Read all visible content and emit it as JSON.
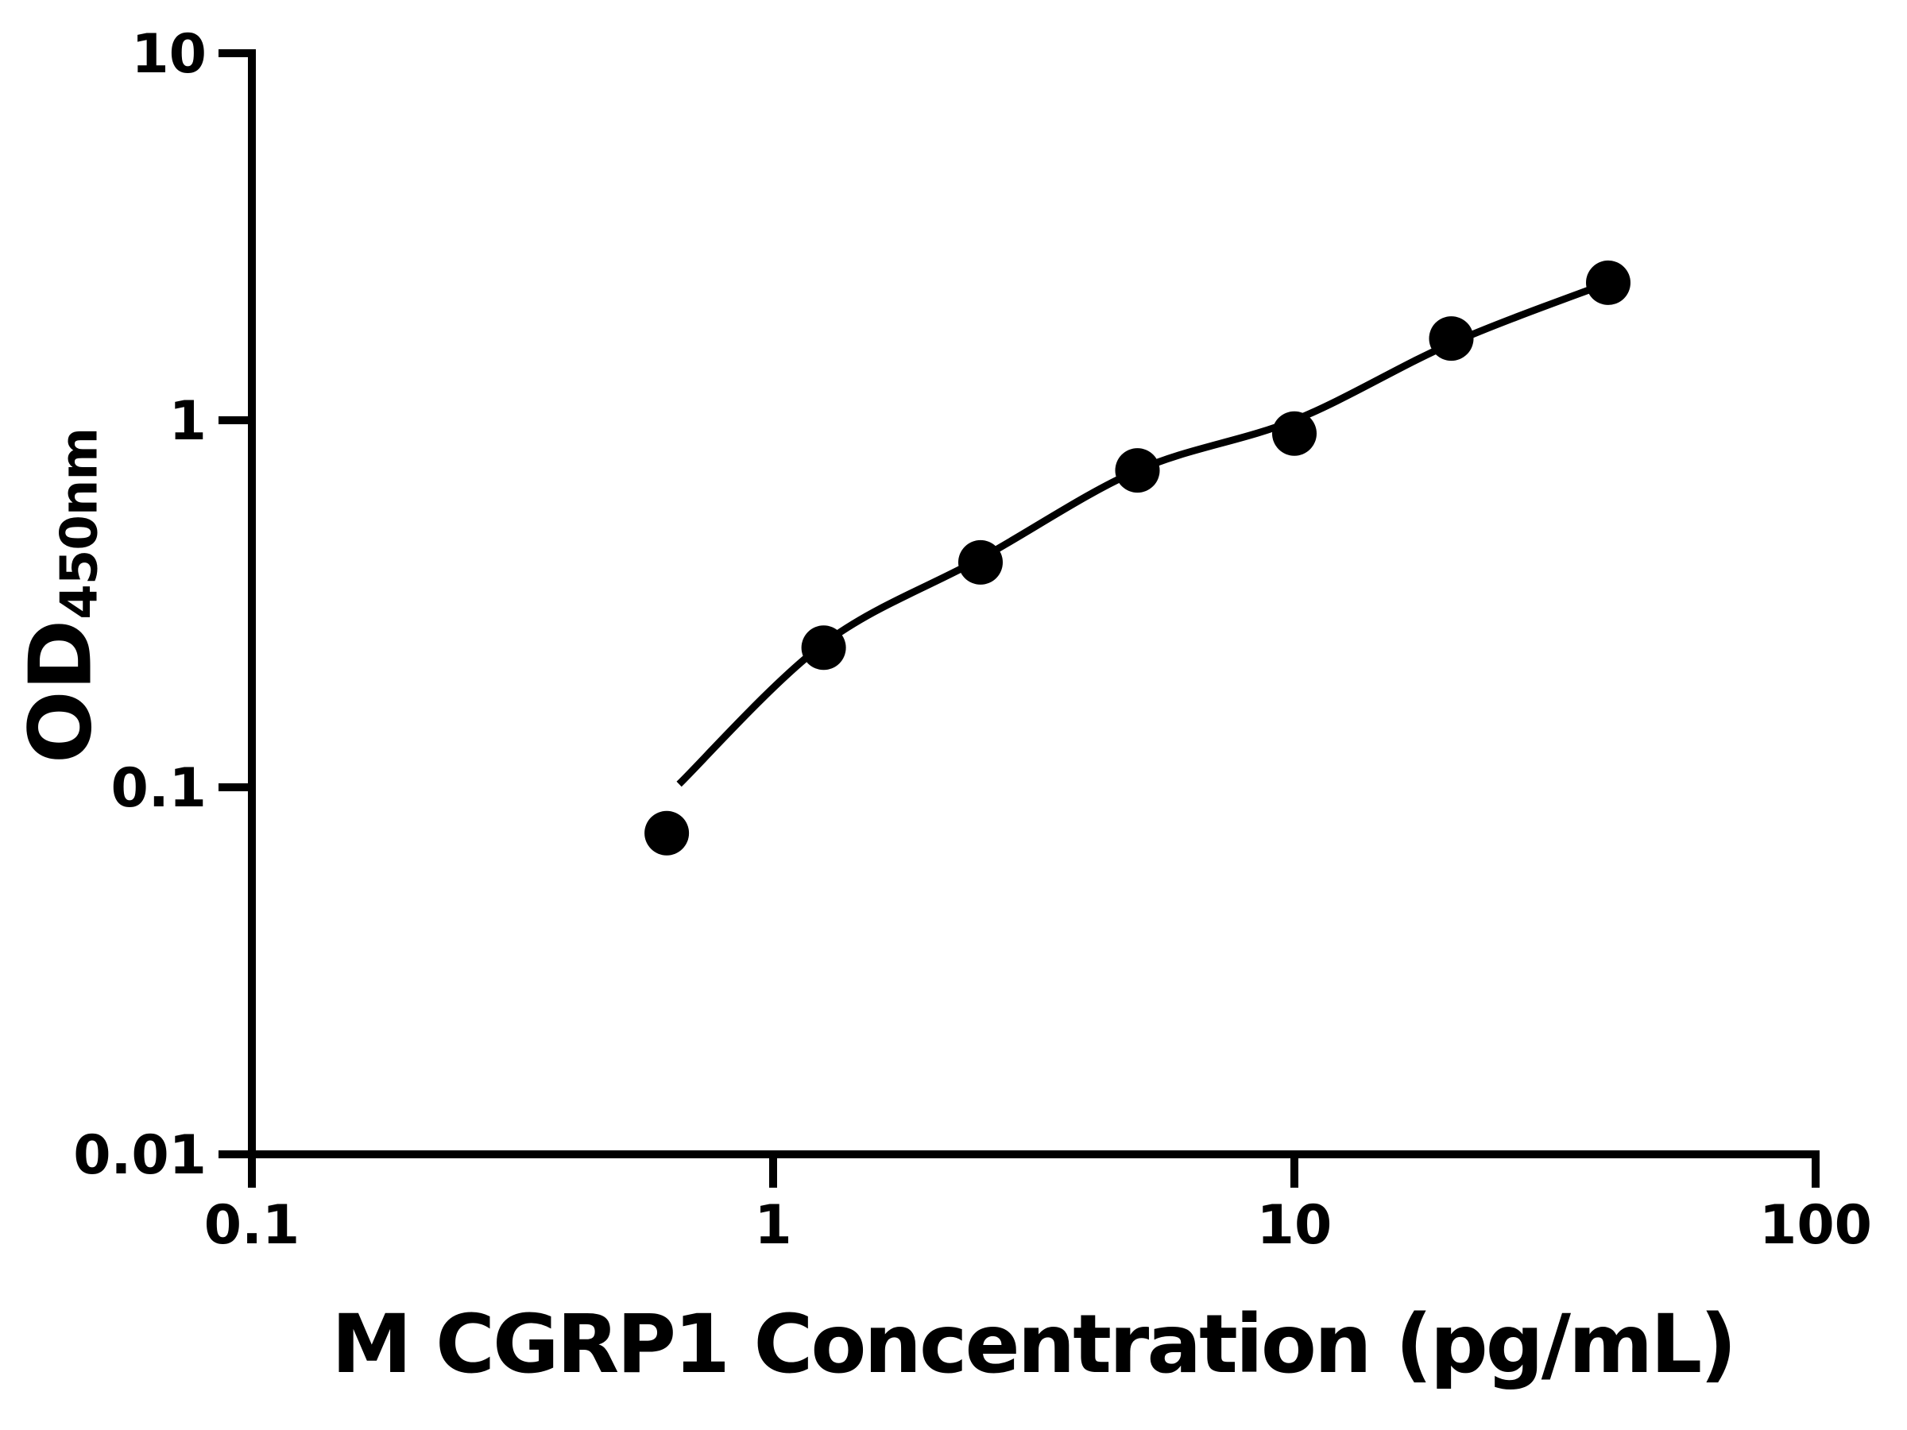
{
  "figure": {
    "background_color": "#ffffff",
    "foreground_color": "#000000"
  },
  "chart_data": {
    "type": "scatter",
    "title": "",
    "xlabel": "M CGRP1 Concentration (pg/mL)",
    "ylabel": "OD450nm",
    "ylabel_main": "OD",
    "ylabel_sub": "450nm",
    "x_scale": "log",
    "y_scale": "log",
    "xlim": [
      0.1,
      100
    ],
    "ylim": [
      0.01,
      10
    ],
    "x_tick_labels": [
      "0.1",
      "1",
      "10",
      "100"
    ],
    "y_tick_labels": [
      "0.01",
      "0.1",
      "1",
      "10"
    ],
    "grid": false,
    "legend": false,
    "marker": "filled-circle",
    "marker_color": "#000000",
    "line_color": "#000000",
    "series": [
      {
        "name": "standard-points",
        "type": "scatter",
        "x": [
          0.625,
          1.25,
          2.5,
          5,
          10,
          20,
          40
        ],
        "y": [
          0.075,
          0.24,
          0.41,
          0.73,
          0.92,
          1.67,
          2.37
        ]
      },
      {
        "name": "fitted-curve",
        "type": "line",
        "x": [
          0.66,
          1.25,
          2.5,
          5,
          10,
          20,
          40
        ],
        "y": [
          0.102,
          0.246,
          0.42,
          0.73,
          1.0,
          1.62,
          2.37
        ]
      }
    ]
  }
}
